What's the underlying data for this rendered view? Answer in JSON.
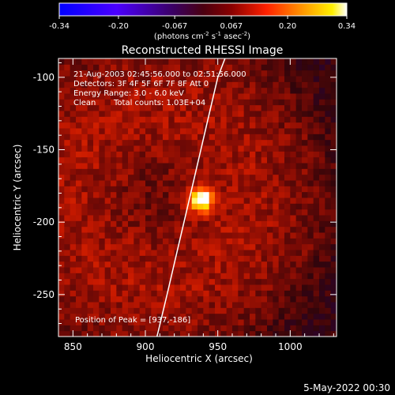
{
  "chart_data": {
    "type": "heatmap",
    "title": "Reconstructed RHESSI Image",
    "xlabel": "Heliocentric X (arcsec)",
    "ylabel": "Heliocentric Y (arcsec)",
    "xlim": [
      840,
      1032
    ],
    "ylim": [
      -279,
      -87
    ],
    "xticks": [
      850,
      900,
      950,
      1000
    ],
    "yticks": [
      -100,
      -150,
      -200,
      -250
    ],
    "annotations": [
      "21-Aug-2003 02:45:56.000 to 02:51:56.000",
      "Detectors: 3F 4F 5F 6F 7F 8F Att 0",
      "Energy Range: 3.0 - 6.0 keV",
      "Clean",
      "Total counts: 1.03E+04"
    ],
    "peak_label": "Position of Peak = [937,-186]",
    "peak": {
      "x": 937,
      "y": -186
    },
    "limb_curve": {
      "x": [
        908,
        915,
        922,
        929,
        936,
        943,
        950,
        955
      ],
      "y": [
        -279,
        -250,
        -220,
        -190,
        -160,
        -130,
        -100,
        -87
      ]
    },
    "colorbar": {
      "ticks": [
        "-0.34",
        "-0.20",
        "-0.067",
        "0.067",
        "0.20",
        "0.34"
      ],
      "range": [
        -0.34,
        0.34
      ],
      "unit_main": "(photons cm",
      "unit_sup1": "-2",
      "unit_s": " s",
      "unit_sup2": "-1",
      "unit_asec": " asec",
      "unit_sup3": "-2",
      "unit_close": ")"
    },
    "footer_date": "5-May-2022 00:30"
  }
}
